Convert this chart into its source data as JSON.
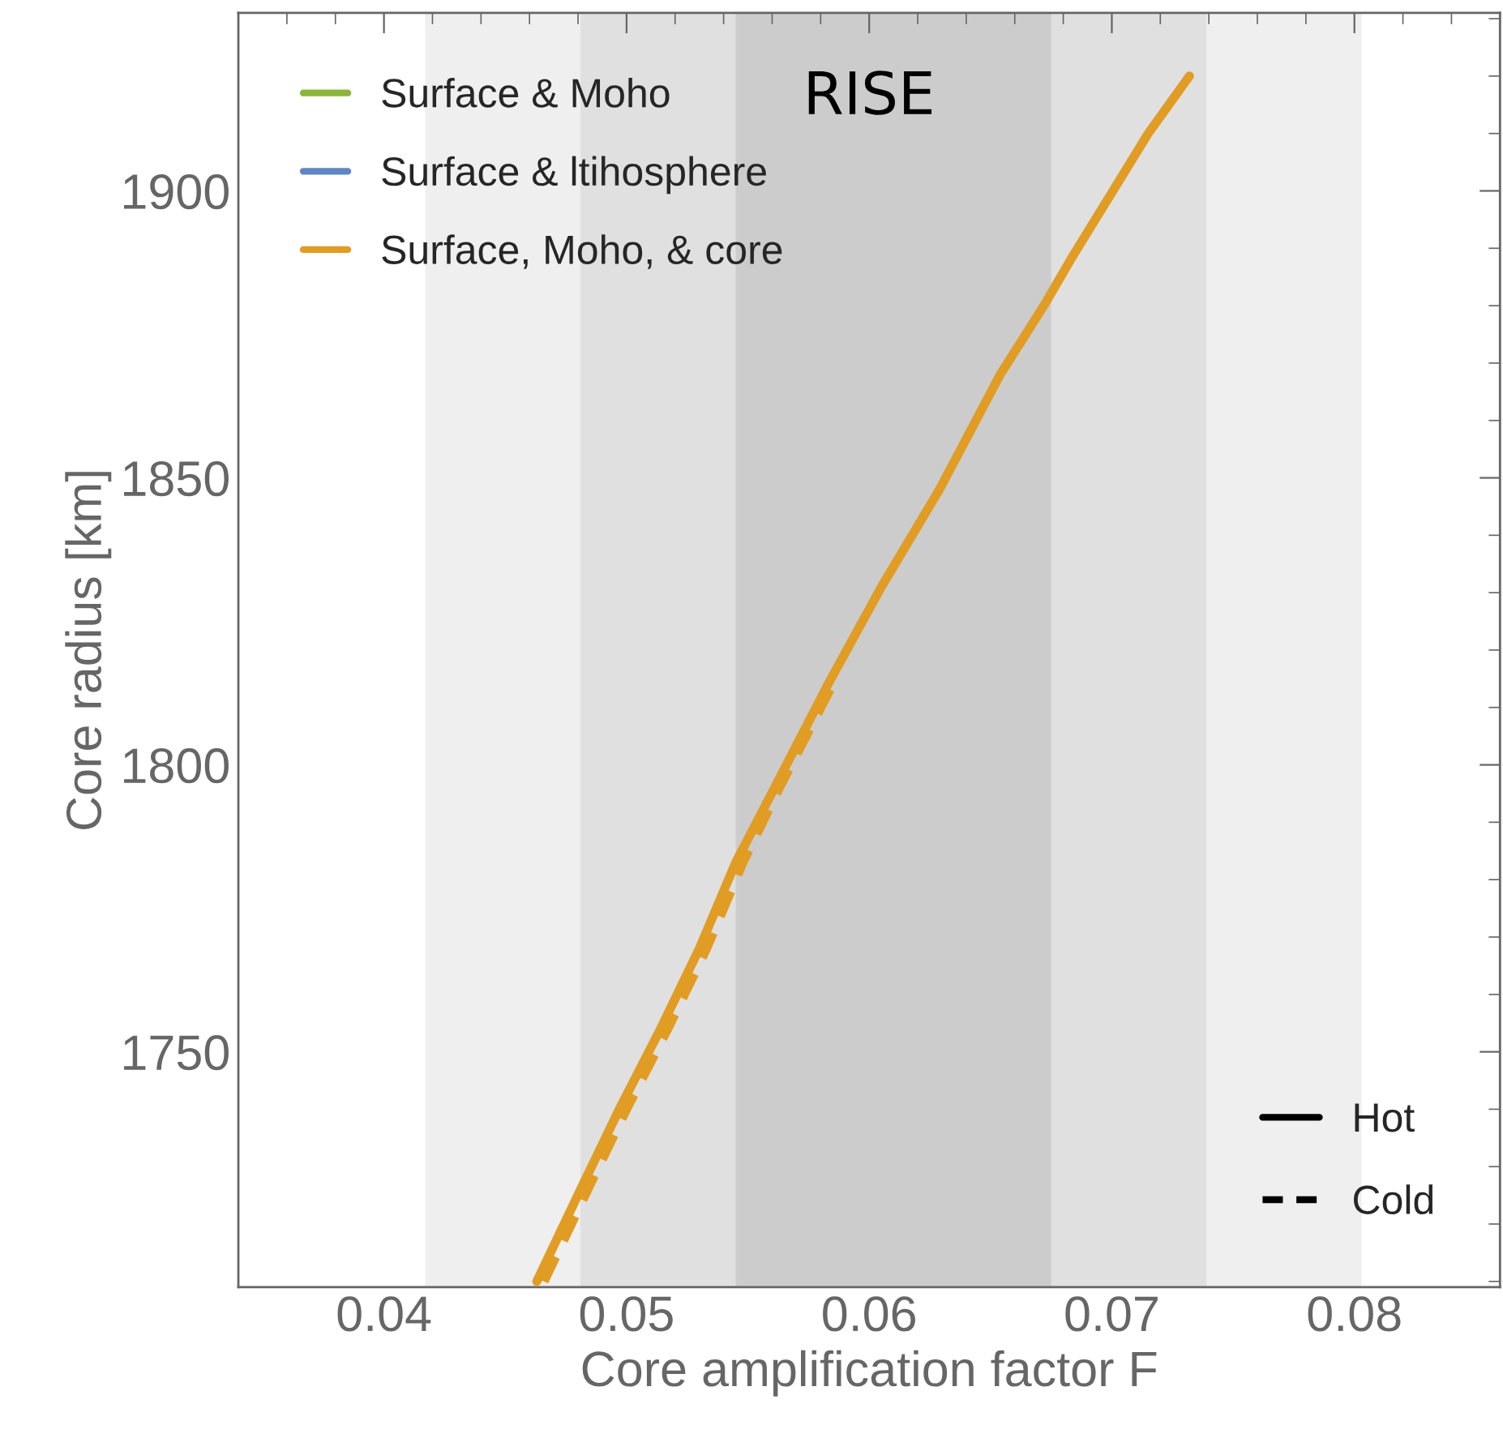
{
  "chart_data": {
    "type": "line",
    "title": "RISE",
    "xlabel": "Core amplification factor F",
    "ylabel": "Core radius [km]",
    "xlim": [
      0.034,
      0.086
    ],
    "xticks": [
      0.04,
      0.05,
      0.06,
      0.07,
      0.08
    ],
    "ylim": [
      1709,
      1931
    ],
    "yticks": [
      1750,
      1800,
      1850,
      1900
    ],
    "x": [
      0.0463,
      0.0481,
      0.0497,
      0.0514,
      0.053,
      0.0545,
      0.0561,
      0.0583,
      0.0605,
      0.0629,
      0.0654,
      0.0672,
      0.0683,
      0.0699,
      0.0715,
      0.0732
    ],
    "grid": false,
    "legend": "top left",
    "marker": "none",
    "annotations": [
      "Hot",
      "Cold"
    ],
    "bands": [
      {
        "axis": "x",
        "from": 0.0417,
        "to": 0.0803,
        "color": "#efefef"
      },
      {
        "axis": "x",
        "from": 0.0481,
        "to": 0.0739,
        "color": "#e0e0e0"
      },
      {
        "axis": "x",
        "from": 0.0545,
        "to": 0.0675,
        "color": "#cccccc"
      }
    ],
    "series": [
      {
        "name": "Surface & Moho",
        "color": "#8cb43c",
        "line_style": "solid",
        "values": [
          null,
          null,
          null,
          null,
          null,
          null,
          null,
          null,
          null,
          null,
          null,
          null,
          null,
          null,
          null,
          null
        ]
      },
      {
        "name": "Surface & ltihosphere",
        "color": "#5f87c3",
        "line_style": "solid",
        "values": [
          null,
          null,
          null,
          null,
          null,
          null,
          null,
          null,
          null,
          null,
          null,
          null,
          null,
          null,
          null,
          null
        ]
      },
      {
        "name": "Surface, Moho, & core",
        "color": "#e19c24",
        "line_style": "solid",
        "values": [
          1710,
          1726,
          1740,
          1754,
          1768,
          1783,
          1796,
          1814,
          1831,
          1848,
          1868,
          1880,
          1888,
          1899,
          1910,
          1920
        ]
      },
      {
        "color": "#e19c24",
        "line_style": "dashed",
        "x": [
          0.0466,
          0.0484,
          0.05,
          0.0517,
          0.0533,
          0.0548,
          0.0563,
          0.0585
        ],
        "values": [
          1710,
          1726,
          1740,
          1754,
          1768,
          1783,
          1796,
          1814
        ]
      }
    ]
  }
}
